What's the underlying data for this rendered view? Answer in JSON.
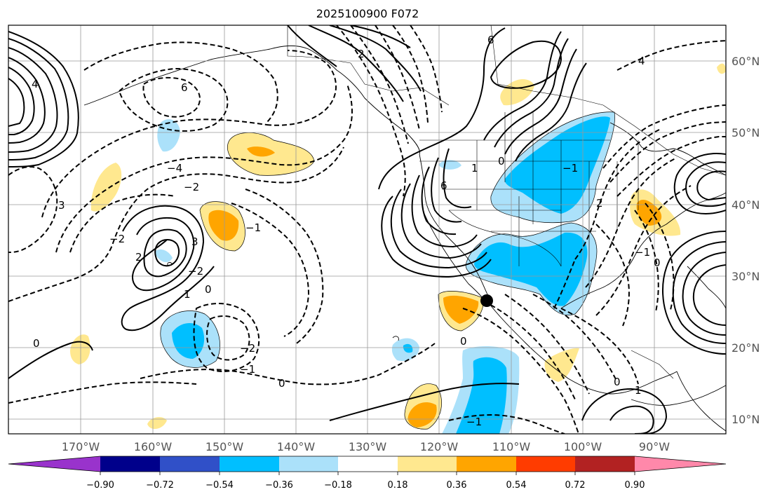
{
  "title": "2025100900 F072",
  "axes": {
    "lon_labels": [
      "170°W",
      "160°W",
      "150°W",
      "140°W",
      "130°W",
      "120°W",
      "110°W",
      "100°W",
      "90°W"
    ],
    "lat_labels": [
      "60°N",
      "50°N",
      "40°N",
      "30°N",
      "20°N",
      "10°N"
    ]
  },
  "colorbar": {
    "colors": [
      "#9933cc",
      "#00008b",
      "#3050c8",
      "#00bfff",
      "#abe1fa",
      "#ffffff",
      "#ffe88f",
      "#ffa500",
      "#ff3c00",
      "#b22222",
      "#ff88aa"
    ],
    "tick_labels": [
      "−0.90",
      "−0.72",
      "−0.54",
      "−0.36",
      "−0.18",
      "0.18",
      "0.36",
      "0.54",
      "0.72",
      "0.90"
    ]
  },
  "contour_labels": [
    "4",
    "4",
    "6",
    "2",
    "6",
    "−4",
    "−2",
    "3",
    "−2",
    "−2",
    "−1",
    "3",
    "2",
    "1",
    "0",
    "0",
    "−2",
    "−1",
    "0",
    "0",
    "6",
    "1",
    "0",
    "0",
    "1",
    "−1",
    "−1",
    "2",
    "−1",
    "0"
  ],
  "marker": "storm-center-dot"
}
